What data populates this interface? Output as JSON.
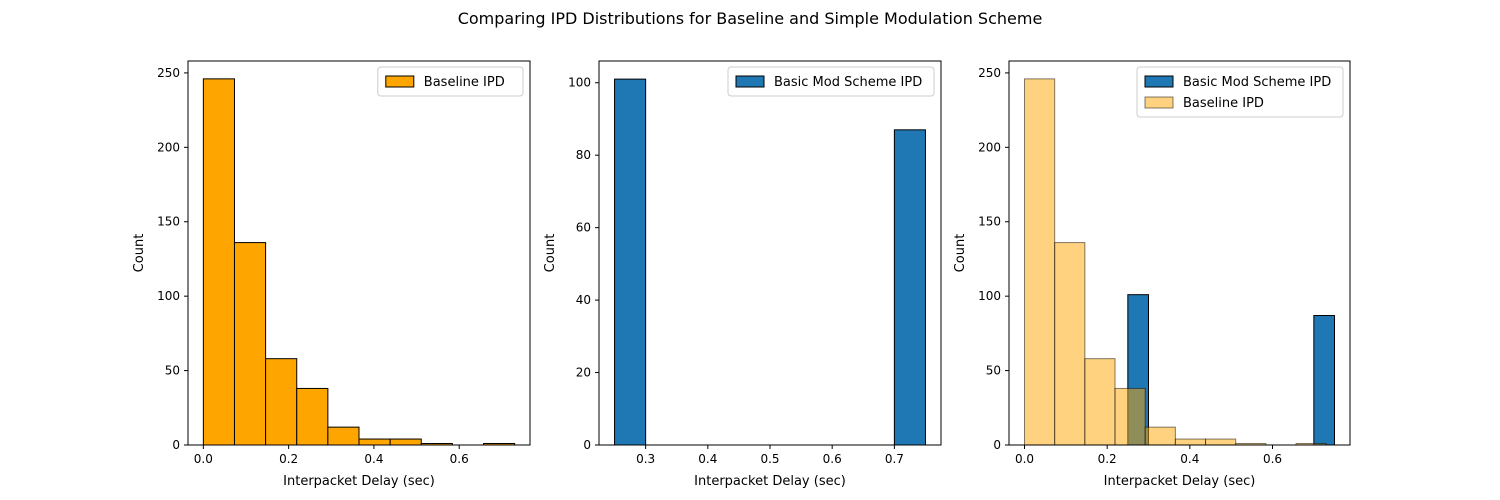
{
  "figure": {
    "title": "Comparing IPD Distributions for Baseline and Simple Modulation Scheme"
  },
  "colors": {
    "baseline": "#FFA500",
    "mod": "#1F77B4",
    "edge": "#000000"
  },
  "chart_data": [
    {
      "type": "bar",
      "subtype": "histogram",
      "xlabel": "Interpacket Delay (sec)",
      "ylabel": "Count",
      "xlim": [
        -0.036,
        0.766
      ],
      "ylim": [
        0,
        258
      ],
      "xticks": [
        0.0,
        0.2,
        0.4,
        0.6
      ],
      "yticks": [
        0,
        50,
        100,
        150,
        200,
        250
      ],
      "xtick_labels": [
        "0.0",
        "0.2",
        "0.4",
        "0.6"
      ],
      "ytick_labels": [
        "0",
        "50",
        "100",
        "150",
        "200",
        "250"
      ],
      "legend_position": "top-right",
      "series": [
        {
          "name": "Baseline IPD",
          "style": "baseline",
          "opacity": 1.0,
          "bin_edges": [
            0.0,
            0.073,
            0.146,
            0.219,
            0.292,
            0.365,
            0.438,
            0.511,
            0.584,
            0.657,
            0.73
          ],
          "counts": [
            246,
            136,
            58,
            38,
            12,
            4,
            4,
            1,
            0,
            1
          ]
        }
      ]
    },
    {
      "type": "bar",
      "subtype": "histogram",
      "xlabel": "Interpacket Delay (sec)",
      "ylabel": "Count",
      "xlim": [
        0.225,
        0.775
      ],
      "ylim": [
        0,
        106
      ],
      "xticks": [
        0.3,
        0.4,
        0.5,
        0.6,
        0.7
      ],
      "yticks": [
        0,
        20,
        40,
        60,
        80,
        100
      ],
      "xtick_labels": [
        "0.3",
        "0.4",
        "0.5",
        "0.6",
        "0.7"
      ],
      "ytick_labels": [
        "0",
        "20",
        "40",
        "60",
        "80",
        "100"
      ],
      "legend_position": "top-right",
      "series": [
        {
          "name": "Basic Mod Scheme IPD",
          "style": "mod",
          "opacity": 1.0,
          "bin_edges": [
            0.25,
            0.3,
            0.35,
            0.4,
            0.45,
            0.5,
            0.55,
            0.6,
            0.65,
            0.7,
            0.75
          ],
          "counts": [
            101,
            0,
            0,
            0,
            0,
            0,
            0,
            0,
            0,
            87
          ]
        }
      ]
    },
    {
      "type": "bar",
      "subtype": "histogram",
      "xlabel": "Interpacket Delay (sec)",
      "ylabel": "Count",
      "xlim": [
        -0.0375,
        0.7875
      ],
      "ylim": [
        0,
        258
      ],
      "xticks": [
        0.0,
        0.2,
        0.4,
        0.6
      ],
      "yticks": [
        0,
        50,
        100,
        150,
        200,
        250
      ],
      "xtick_labels": [
        "0.0",
        "0.2",
        "0.4",
        "0.6"
      ],
      "ytick_labels": [
        "0",
        "50",
        "100",
        "150",
        "200",
        "250"
      ],
      "legend_position": "top-right",
      "series": [
        {
          "name": "Basic Mod Scheme IPD",
          "style": "mod",
          "opacity": 1.0,
          "bin_edges": [
            0.25,
            0.3,
            0.35,
            0.4,
            0.45,
            0.5,
            0.55,
            0.6,
            0.65,
            0.7,
            0.75
          ],
          "counts": [
            101,
            0,
            0,
            0,
            0,
            0,
            0,
            0,
            0,
            87
          ]
        },
        {
          "name": "Baseline IPD",
          "style": "baseline",
          "opacity": 0.5,
          "bin_edges": [
            0.0,
            0.073,
            0.146,
            0.219,
            0.292,
            0.365,
            0.438,
            0.511,
            0.584,
            0.657,
            0.73
          ],
          "counts": [
            246,
            136,
            58,
            38,
            12,
            4,
            4,
            1,
            0,
            1
          ]
        }
      ]
    }
  ]
}
